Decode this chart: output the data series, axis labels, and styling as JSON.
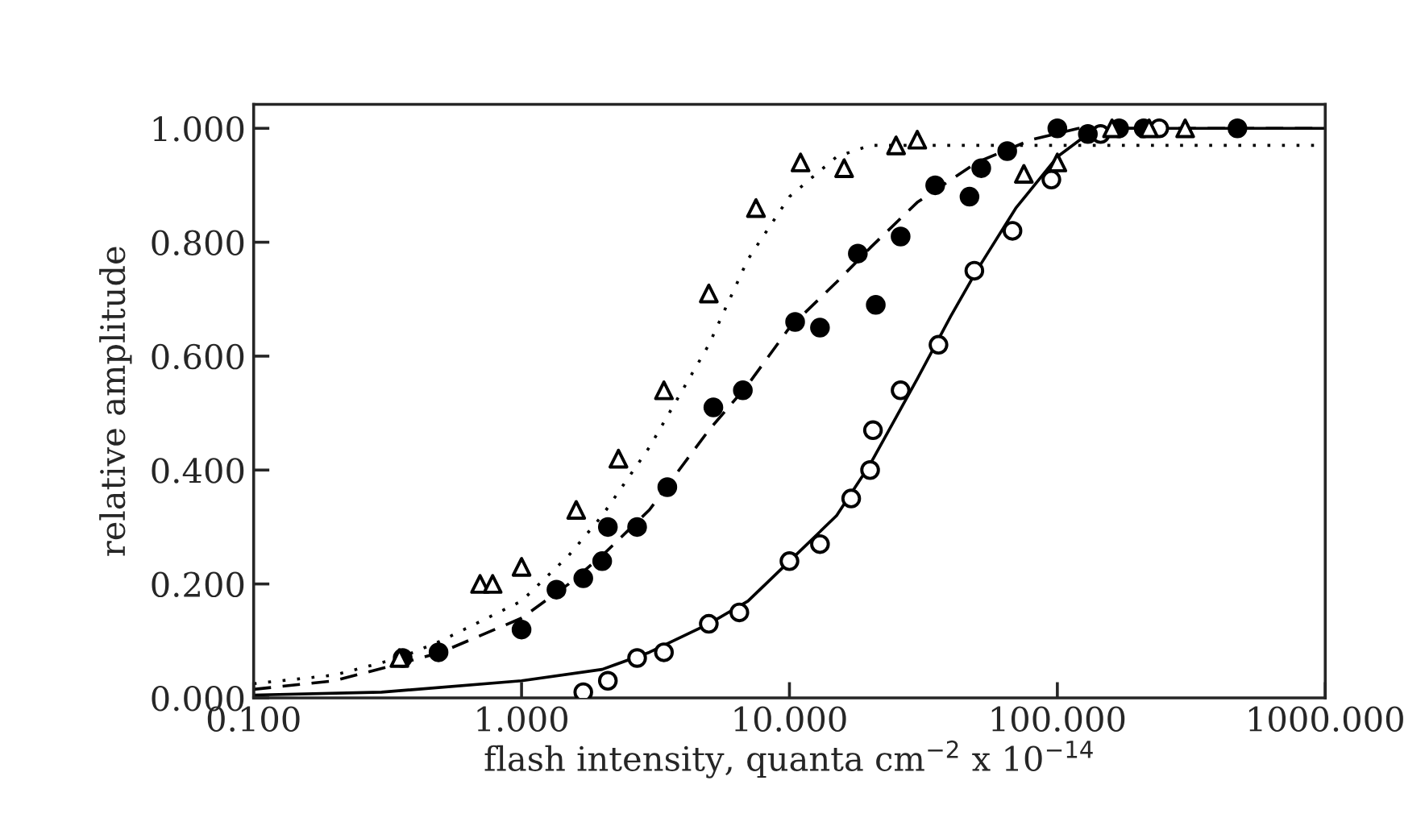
{
  "chart_data": {
    "type": "scatter",
    "xlabel": "flash intensity, quanta cm$^{−2}$ x 10$^{−14}$",
    "ylabel": "relative amplitude",
    "log": "x",
    "grid": false,
    "xlim": [
      0.1,
      1000
    ],
    "ylim": [
      0,
      1.042
    ],
    "xticks": [
      {
        "value": 0.1,
        "label": "0.100"
      },
      {
        "value": 1,
        "label": "1.000"
      },
      {
        "value": 10,
        "label": "10.000"
      },
      {
        "value": 100,
        "label": "100.000"
      },
      {
        "value": 1000,
        "label": "1000.000"
      }
    ],
    "yticks": [
      {
        "value": 0,
        "label": "0.000"
      },
      {
        "value": 0.2,
        "label": "0.200"
      },
      {
        "value": 0.4,
        "label": "0.400"
      },
      {
        "value": 0.6,
        "label": "0.600"
      },
      {
        "value": 0.8,
        "label": "0.800"
      },
      {
        "value": 1.0,
        "label": "1.000"
      }
    ],
    "series": [
      {
        "type": "scatter",
        "marker": "triangle",
        "color": "#ffffff",
        "x": [
          0.35,
          0.7,
          0.78,
          1.0,
          1.6,
          2.3,
          3.4,
          5.0,
          7.5,
          11,
          16,
          25,
          30,
          75,
          100,
          160,
          220,
          300
        ],
        "values": [
          0.07,
          0.2,
          0.2,
          0.23,
          0.33,
          0.42,
          0.54,
          0.71,
          0.86,
          0.94,
          0.93,
          0.97,
          0.98,
          0.92,
          0.94,
          1.0,
          1.0,
          1.0
        ]
      },
      {
        "type": "scatter",
        "marker": "circle",
        "color": "#000000",
        "x": [
          0.36,
          0.49,
          1.0,
          1.35,
          1.7,
          2.0,
          2.1,
          2.7,
          3.5,
          5.2,
          6.7,
          10.5,
          13,
          18,
          21,
          26,
          35,
          47,
          52,
          65,
          100,
          130,
          170,
          210,
          470
        ],
        "values": [
          0.07,
          0.08,
          0.12,
          0.19,
          0.21,
          0.24,
          0.3,
          0.3,
          0.37,
          0.51,
          0.54,
          0.66,
          0.65,
          0.78,
          0.69,
          0.81,
          0.9,
          0.88,
          0.93,
          0.96,
          1.0,
          0.99,
          1.0,
          1.0,
          1.0
        ]
      },
      {
        "type": "scatter",
        "marker": "circle",
        "color": "#ffffff",
        "x": [
          1.7,
          2.1,
          2.7,
          3.4,
          5.0,
          6.5,
          10,
          13,
          17,
          20,
          20.5,
          26,
          36,
          49,
          68,
          95,
          145,
          240
        ],
        "values": [
          0.01,
          0.03,
          0.07,
          0.08,
          0.13,
          0.15,
          0.24,
          0.27,
          0.35,
          0.4,
          0.47,
          0.54,
          0.62,
          0.75,
          0.82,
          0.91,
          0.99,
          1.0
        ]
      },
      {
        "type": "line",
        "line_style": "dotted",
        "color": "#000000",
        "x": [
          0.1,
          0.2,
          0.35,
          0.5,
          1,
          1.5,
          2,
          3,
          5,
          7,
          10,
          15,
          20,
          30,
          1000
        ],
        "values": [
          0.025,
          0.04,
          0.07,
          0.1,
          0.17,
          0.25,
          0.32,
          0.44,
          0.62,
          0.77,
          0.88,
          0.95,
          0.97,
          0.97,
          0.97
        ]
      },
      {
        "type": "line",
        "line_style": "dashed",
        "color": "#000000",
        "x": [
          0.1,
          0.2,
          0.35,
          0.5,
          1,
          1.5,
          2,
          3,
          5,
          7,
          10,
          15,
          20,
          30,
          50,
          80,
          120,
          1000
        ],
        "values": [
          0.015,
          0.03,
          0.06,
          0.08,
          0.14,
          0.2,
          0.25,
          0.33,
          0.47,
          0.55,
          0.65,
          0.73,
          0.79,
          0.87,
          0.94,
          0.98,
          1.0,
          1.0
        ]
      },
      {
        "type": "line",
        "line_style": "solid",
        "color": "#000000",
        "x": [
          0.1,
          0.3,
          1,
          2,
          3,
          5,
          7,
          10,
          15,
          20,
          30,
          40,
          50,
          70,
          100,
          130,
          150,
          1000
        ],
        "values": [
          0.005,
          0.01,
          0.03,
          0.05,
          0.08,
          0.13,
          0.17,
          0.24,
          0.32,
          0.41,
          0.56,
          0.67,
          0.75,
          0.86,
          0.95,
          0.99,
          1.0,
          1.0
        ]
      }
    ]
  }
}
